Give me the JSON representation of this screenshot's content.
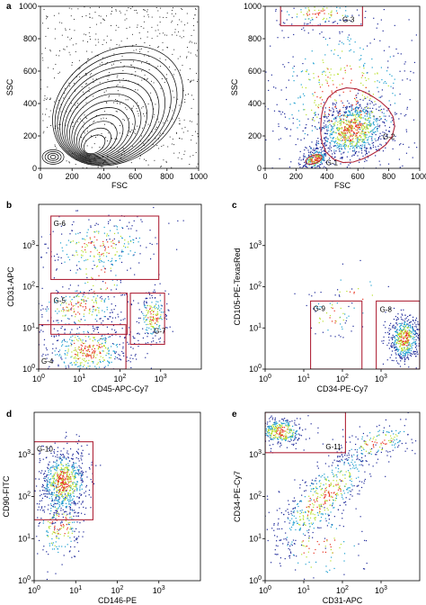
{
  "panels": [
    {
      "letter": "a",
      "chart_data": {
        "type": "scatter",
        "style": "contour",
        "xlabel": "FSC",
        "ylabel": "SSC",
        "xscale": "linear",
        "yscale": "linear",
        "xlim": [
          0,
          1000
        ],
        "ylim": [
          0,
          1000
        ],
        "xticks": [
          0,
          200,
          400,
          600,
          800,
          1000
        ],
        "yticks": [
          0,
          200,
          400,
          600,
          800,
          1000
        ],
        "gates": []
      }
    },
    {
      "letter": "",
      "chart_data": {
        "type": "scatter",
        "style": "density",
        "xlabel": "FSC",
        "ylabel": "SSC",
        "xscale": "linear",
        "yscale": "linear",
        "xlim": [
          0,
          1000
        ],
        "ylim": [
          0,
          1000
        ],
        "xticks": [
          0,
          200,
          400,
          600,
          800,
          1000
        ],
        "yticks": [
          0,
          200,
          400,
          600,
          800,
          1000
        ],
        "gates": [
          {
            "name": "G-1",
            "shape": "ellipse",
            "x": [
              260,
              370
            ],
            "y": [
              30,
              80
            ]
          },
          {
            "name": "G-2",
            "shape": "polygon",
            "x": [
              340,
              820
            ],
            "y": [
              40,
              490
            ]
          },
          {
            "name": "G-3",
            "shape": "rect",
            "x": [
              100,
              630
            ],
            "y": [
              880,
              1030
            ]
          }
        ]
      }
    },
    {
      "letter": "b",
      "chart_data": {
        "type": "scatter",
        "style": "density",
        "xlabel": "CD45-APC-Cy7",
        "ylabel": "CD31-APC",
        "xscale": "log",
        "yscale": "log",
        "xlim": [
          1,
          10000
        ],
        "ylim": [
          1,
          10000
        ],
        "xticks": [
          1,
          10,
          100,
          1000
        ],
        "yticks": [
          1,
          10,
          100,
          1000
        ],
        "gates": [
          {
            "name": "G-4",
            "shape": "rect",
            "x": [
              1,
              140
            ],
            "y": [
              1,
              12
            ]
          },
          {
            "name": "G-5",
            "shape": "rect",
            "x": [
              2,
              150
            ],
            "y": [
              7,
              70
            ]
          },
          {
            "name": "G-6",
            "shape": "rect",
            "x": [
              2,
              900
            ],
            "y": [
              150,
              5200
            ]
          },
          {
            "name": "G-7",
            "shape": "rect",
            "x": [
              180,
              1250
            ],
            "y": [
              4,
              70
            ]
          }
        ]
      }
    },
    {
      "letter": "c",
      "chart_data": {
        "type": "scatter",
        "style": "density",
        "xlabel": "CD34-PE-Cy7",
        "ylabel": "CD105-PE-TexasRed",
        "xscale": "log",
        "yscale": "log",
        "xlim": [
          1,
          10000
        ],
        "ylim": [
          1,
          10000
        ],
        "xticks": [
          1,
          10,
          100,
          1000
        ],
        "yticks": [
          1,
          10,
          100,
          1000
        ],
        "gates": [
          {
            "name": "G-9",
            "shape": "rect",
            "x": [
              15,
              320
            ],
            "y": [
              1,
              45
            ]
          },
          {
            "name": "G-8",
            "shape": "rect",
            "x": [
              750,
              10000
            ],
            "y": [
              1,
              45
            ]
          }
        ]
      }
    },
    {
      "letter": "d",
      "chart_data": {
        "type": "scatter",
        "style": "density",
        "xlabel": "CD146-PE",
        "ylabel": "CD90-FITC",
        "xscale": "log",
        "yscale": "log",
        "xlim": [
          1,
          10000
        ],
        "ylim": [
          1,
          10000
        ],
        "xticks": [
          1,
          10,
          100,
          1000
        ],
        "yticks": [
          1,
          10,
          100,
          1000
        ],
        "gates": [
          {
            "name": "G-10",
            "shape": "rect",
            "x": [
              1,
              26
            ],
            "y": [
              28,
              2000
            ]
          }
        ]
      }
    },
    {
      "letter": "e",
      "chart_data": {
        "type": "scatter",
        "style": "density",
        "xlabel": "CD31-APC",
        "ylabel": "CD34-PE-Cy7",
        "xscale": "log",
        "yscale": "log",
        "xlim": [
          1,
          10000
        ],
        "ylim": [
          1,
          10000
        ],
        "xticks": [
          1,
          10,
          100,
          1000
        ],
        "yticks": [
          1,
          10,
          100,
          1000
        ],
        "gates": [
          {
            "name": "G-11",
            "shape": "rect",
            "x": [
              1,
              120
            ],
            "y": [
              1100,
              10000
            ]
          }
        ]
      }
    }
  ],
  "colors": {
    "gate": "#b0263a",
    "dots": "#2a2aa0",
    "density_low": "#1f2a9a",
    "density_mid": "#1fa0d0",
    "density_high": "#b8e02a",
    "density_peak": "#e8301f",
    "axis": "#000000"
  }
}
